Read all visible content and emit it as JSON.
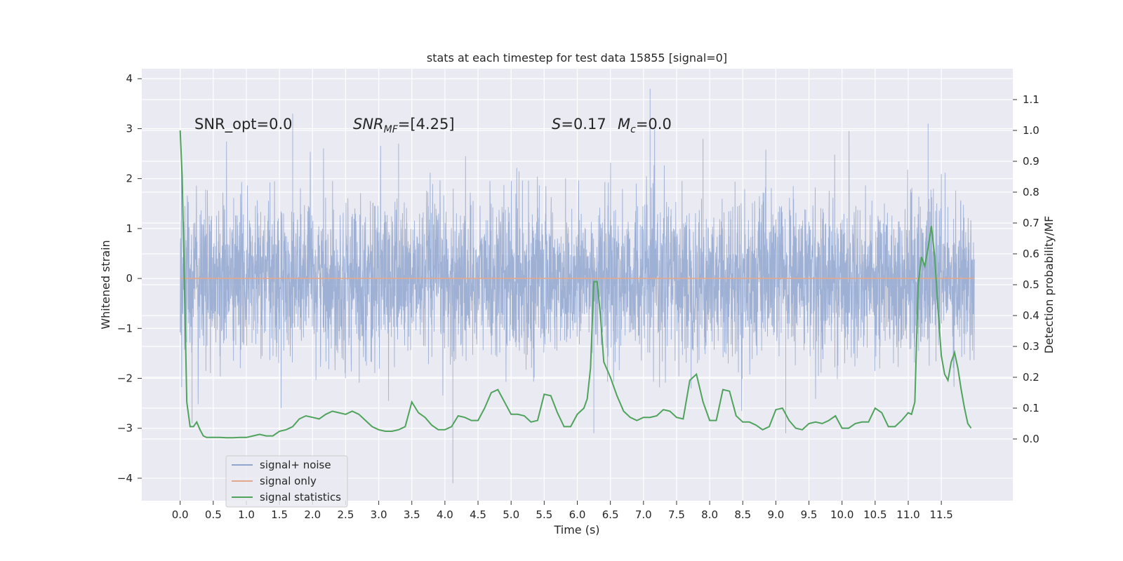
{
  "chart_data": {
    "type": "line",
    "title": "stats at each timestep for test data 15855 [signal=0]",
    "xlabel": "Time (s)",
    "ylabel": "Whitened strain",
    "y2label": "Detection probability/MF",
    "xlim": [
      -0.58,
      12.58
    ],
    "ylim": [
      -4.45,
      4.2
    ],
    "y2lim": [
      -0.2,
      1.2
    ],
    "grid": true,
    "legend_position": "lower-left",
    "x_ticks": [
      "0.0",
      "0.5",
      "1.0",
      "1.5",
      "2.0",
      "2.5",
      "3.0",
      "3.5",
      "4.0",
      "4.5",
      "5.0",
      "5.5",
      "6.0",
      "6.5",
      "7.0",
      "7.5",
      "8.0",
      "8.5",
      "9.0",
      "9.5",
      "10.0",
      "10.5",
      "11.0",
      "11.5"
    ],
    "y_ticks": [
      "4",
      "3",
      "2",
      "1",
      "0",
      "−1",
      "−2",
      "−3",
      "−4"
    ],
    "y2_ticks": [
      "1.1",
      "1.0",
      "0.9",
      "0.8",
      "0.7",
      "0.6",
      "0.5",
      "0.4",
      "0.3",
      "0.2",
      "0.1",
      "0.0"
    ],
    "annotations": {
      "snr_opt": "SNR_opt=0.0",
      "snr_mf_main": "SNR",
      "snr_mf_sub": "MF",
      "snr_mf_value": "=[4.25]",
      "s_main": "S",
      "s_value": "=0.17",
      "mc_main": "M",
      "mc_sub": "c",
      "mc_value": "=0.0"
    },
    "series": [
      {
        "name": "signal+ noise",
        "axis": "left",
        "color": "#91a6cf",
        "style": "dense-noise",
        "sigma": 1.0,
        "duration": 12.0,
        "extremes": [
          [
            0.18,
            -2.9
          ],
          [
            1.7,
            3.3
          ],
          [
            3.3,
            2.7
          ],
          [
            4.12,
            -4.1
          ],
          [
            6.25,
            -3.1
          ],
          [
            7.1,
            3.8
          ],
          [
            7.9,
            2.8
          ],
          [
            9.15,
            -3.1
          ],
          [
            11.3,
            3.1
          ]
        ]
      },
      {
        "name": "signal only",
        "axis": "left",
        "color": "#e3a88b",
        "x": [
          0,
          12
        ],
        "y": [
          0,
          0
        ]
      },
      {
        "name": "signal statistics",
        "axis": "right",
        "color": "#4fa35c",
        "x": [
          0,
          0.03,
          0.06,
          0.1,
          0.15,
          0.2,
          0.25,
          0.3,
          0.35,
          0.4,
          0.45,
          0.5,
          0.6,
          0.7,
          0.8,
          0.9,
          1.0,
          1.1,
          1.2,
          1.3,
          1.4,
          1.5,
          1.6,
          1.7,
          1.8,
          1.9,
          2.0,
          2.1,
          2.2,
          2.3,
          2.4,
          2.5,
          2.6,
          2.7,
          2.8,
          2.9,
          3.0,
          3.1,
          3.2,
          3.3,
          3.4,
          3.5,
          3.6,
          3.7,
          3.8,
          3.9,
          4.0,
          4.1,
          4.2,
          4.3,
          4.4,
          4.5,
          4.6,
          4.7,
          4.8,
          4.9,
          5.0,
          5.1,
          5.2,
          5.3,
          5.4,
          5.5,
          5.6,
          5.7,
          5.8,
          5.9,
          6.0,
          6.1,
          6.15,
          6.2,
          6.25,
          6.3,
          6.35,
          6.4,
          6.5,
          6.6,
          6.7,
          6.8,
          6.9,
          7.0,
          7.1,
          7.2,
          7.3,
          7.4,
          7.5,
          7.6,
          7.7,
          7.8,
          7.9,
          8.0,
          8.1,
          8.2,
          8.3,
          8.4,
          8.5,
          8.6,
          8.7,
          8.8,
          8.9,
          9.0,
          9.1,
          9.2,
          9.3,
          9.4,
          9.5,
          9.6,
          9.7,
          9.8,
          9.9,
          10.0,
          10.1,
          10.2,
          10.3,
          10.4,
          10.5,
          10.6,
          10.7,
          10.8,
          10.9,
          11.0,
          11.05,
          11.1,
          11.15,
          11.2,
          11.25,
          11.3,
          11.35,
          11.4,
          11.45,
          11.5,
          11.55,
          11.6,
          11.65,
          11.7,
          11.75,
          11.8,
          11.85,
          11.9,
          11.95
        ],
        "y": [
          1.0,
          0.85,
          0.55,
          0.12,
          0.04,
          0.04,
          0.055,
          0.03,
          0.01,
          0.005,
          0.005,
          0.005,
          0.005,
          0.004,
          0.004,
          0.005,
          0.005,
          0.01,
          0.015,
          0.01,
          0.01,
          0.025,
          0.03,
          0.04,
          0.065,
          0.075,
          0.07,
          0.065,
          0.08,
          0.09,
          0.085,
          0.08,
          0.09,
          0.08,
          0.06,
          0.04,
          0.03,
          0.025,
          0.025,
          0.03,
          0.04,
          0.12,
          0.085,
          0.07,
          0.045,
          0.03,
          0.03,
          0.04,
          0.075,
          0.07,
          0.06,
          0.06,
          0.1,
          0.15,
          0.16,
          0.12,
          0.08,
          0.08,
          0.075,
          0.055,
          0.06,
          0.145,
          0.14,
          0.085,
          0.04,
          0.04,
          0.08,
          0.1,
          0.13,
          0.23,
          0.51,
          0.51,
          0.4,
          0.25,
          0.2,
          0.14,
          0.09,
          0.07,
          0.06,
          0.07,
          0.07,
          0.075,
          0.095,
          0.09,
          0.07,
          0.065,
          0.19,
          0.21,
          0.12,
          0.06,
          0.06,
          0.16,
          0.155,
          0.075,
          0.055,
          0.055,
          0.045,
          0.03,
          0.04,
          0.095,
          0.1,
          0.06,
          0.035,
          0.03,
          0.05,
          0.055,
          0.05,
          0.06,
          0.075,
          0.035,
          0.035,
          0.05,
          0.055,
          0.055,
          0.1,
          0.085,
          0.04,
          0.04,
          0.06,
          0.085,
          0.08,
          0.12,
          0.5,
          0.59,
          0.56,
          0.62,
          0.69,
          0.59,
          0.42,
          0.27,
          0.21,
          0.19,
          0.25,
          0.28,
          0.23,
          0.16,
          0.1,
          0.05,
          0.035
        ]
      }
    ]
  }
}
